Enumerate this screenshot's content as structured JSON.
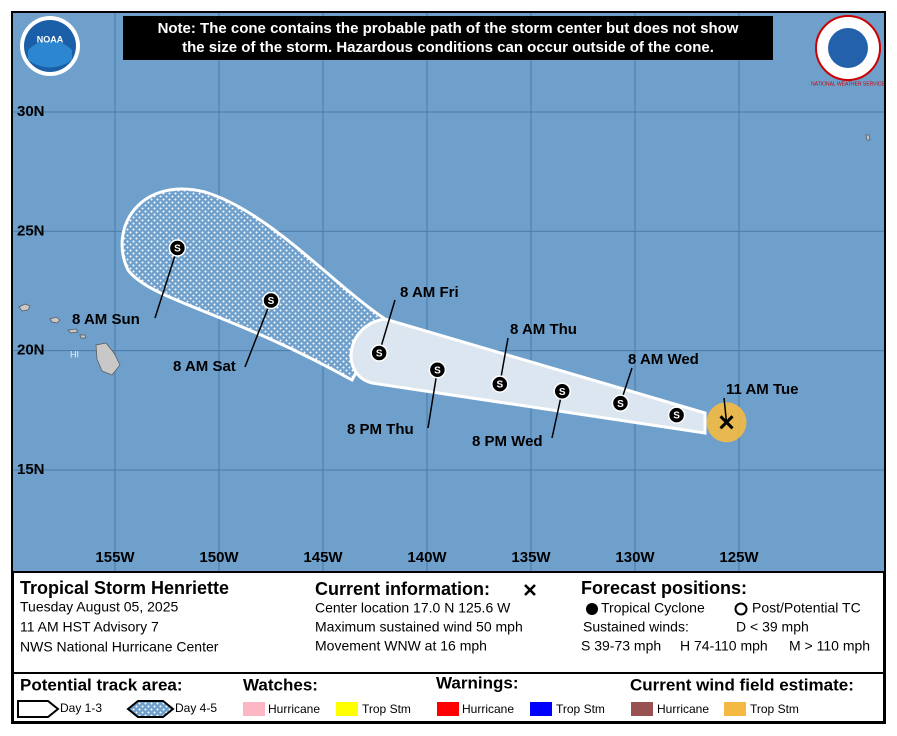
{
  "note": [
    "Note: The cone contains the probable path of the storm center but does not show",
    "the size of the storm. Hazardous conditions can occur outside of the cone."
  ],
  "logos": {
    "noaa": "NOAA",
    "nws": "NATIONAL WEATHER SERVICE"
  },
  "map": {
    "lat_ticks": [
      {
        "value": 30,
        "label": "30N"
      },
      {
        "value": 25,
        "label": "25N"
      },
      {
        "value": 20,
        "label": "20N"
      },
      {
        "value": 15,
        "label": "15N"
      }
    ],
    "lon_ticks": [
      {
        "value": -155,
        "label": "155W"
      },
      {
        "value": -150,
        "label": "150W"
      },
      {
        "value": -145,
        "label": "145W"
      },
      {
        "value": -140,
        "label": "140W"
      },
      {
        "value": -135,
        "label": "135W"
      },
      {
        "value": -130,
        "label": "130W"
      },
      {
        "value": -125,
        "label": "125W"
      }
    ],
    "island_label": "HI",
    "point_symbol": "S",
    "current": {
      "lat": 17.0,
      "lon": -125.6,
      "label": "11 AM Tue"
    },
    "track": [
      {
        "lat": 17.3,
        "lon": -128.0,
        "label": null
      },
      {
        "lat": 17.8,
        "lon": -130.7,
        "label": "8 AM Wed"
      },
      {
        "lat": 18.3,
        "lon": -133.5,
        "label": "8 PM Wed"
      },
      {
        "lat": 18.6,
        "lon": -136.5,
        "label": "8 AM Thu"
      },
      {
        "lat": 19.2,
        "lon": -139.5,
        "label": "8 PM Thu"
      },
      {
        "lat": 19.9,
        "lon": -142.3,
        "label": "8 AM Fri"
      },
      {
        "lat": 22.1,
        "lon": -147.5,
        "label": "8 AM Sat"
      },
      {
        "lat": 24.3,
        "lon": -152.0,
        "label": "8 AM Sun"
      }
    ]
  },
  "info": {
    "storm": "Tropical Storm Henriette",
    "date": "Tuesday August 05, 2025",
    "advisory": "11 AM HST Advisory 7",
    "center": "NWS National Hurricane Center"
  },
  "current_info": {
    "title": "Current information:",
    "location": "Center location 17.0 N 125.6 W",
    "wind": "Maximum sustained wind 50 mph",
    "movement": "Movement WNW at 16 mph"
  },
  "forecast": {
    "title": "Forecast positions:",
    "tc": "Tropical Cyclone",
    "ptc": "Post/Potential TC",
    "winds": "Sustained winds:",
    "d": "D < 39 mph",
    "s": "S 39-73 mph",
    "h": "H 74-110 mph",
    "m": "M > 110 mph"
  },
  "legend": {
    "track": {
      "title": "Potential track area:",
      "day13": "Day 1-3",
      "day45": "Day 4-5"
    },
    "watches": {
      "title": "Watches:",
      "hurricane": "Hurricane",
      "tropstm": "Trop Stm"
    },
    "warnings": {
      "title": "Warnings:",
      "hurricane": "Hurricane",
      "tropstm": "Trop Stm"
    },
    "wind": {
      "title": "Current wind field estimate:",
      "hurricane": "Hurricane",
      "tropstm": "Trop Stm"
    }
  }
}
